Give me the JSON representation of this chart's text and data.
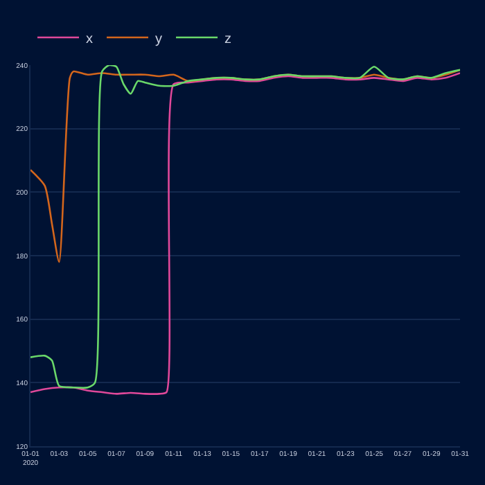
{
  "chart_data": {
    "type": "line",
    "series": [
      {
        "name": "x",
        "color": "#e0489a",
        "x": [
          "2020-01-01",
          "2020-01-02",
          "2020-01-03",
          "2020-01-04",
          "2020-01-05",
          "2020-01-06",
          "2020-01-07",
          "2020-01-08",
          "2020-01-09",
          "2020-01-10",
          "2020-01-10T12:00",
          "2020-01-11",
          "2020-01-12",
          "2020-01-13",
          "2020-01-14",
          "2020-01-15",
          "2020-01-16",
          "2020-01-17",
          "2020-01-18",
          "2020-01-19",
          "2020-01-20",
          "2020-01-21",
          "2020-01-22",
          "2020-01-23",
          "2020-01-24",
          "2020-01-25",
          "2020-01-26",
          "2020-01-27",
          "2020-01-28",
          "2020-01-29",
          "2020-01-30",
          "2020-01-31"
        ],
        "values": [
          137,
          138,
          138.5,
          138.5,
          137.5,
          137,
          136.5,
          136.8,
          136.5,
          136.5,
          137,
          234,
          234.5,
          235,
          235.5,
          235.5,
          235,
          235,
          236,
          236.5,
          236,
          236,
          236,
          235.5,
          235.5,
          236,
          235.5,
          235,
          236,
          235.5,
          236,
          237.5
        ]
      },
      {
        "name": "y",
        "color": "#d4661c",
        "x": [
          "2020-01-01",
          "2020-01-02",
          "2020-01-02T12:00",
          "2020-01-03",
          "2020-01-03T18:00",
          "2020-01-04",
          "2020-01-05",
          "2020-01-06",
          "2020-01-07",
          "2020-01-08",
          "2020-01-09",
          "2020-01-10",
          "2020-01-11",
          "2020-01-12",
          "2020-01-13",
          "2020-01-14",
          "2020-01-15",
          "2020-01-16",
          "2020-01-17",
          "2020-01-18",
          "2020-01-19",
          "2020-01-20",
          "2020-01-21",
          "2020-01-22",
          "2020-01-23",
          "2020-01-24",
          "2020-01-25",
          "2020-01-26",
          "2020-01-27",
          "2020-01-28",
          "2020-01-29",
          "2020-01-30",
          "2020-01-31"
        ],
        "values": [
          207,
          202,
          190,
          178,
          236,
          238,
          237,
          237.5,
          237,
          237,
          237,
          236.5,
          237,
          235,
          235.5,
          236,
          236,
          235.5,
          235.5,
          236.5,
          237,
          236.5,
          236.5,
          236.5,
          236,
          236,
          237,
          236,
          235.5,
          236.5,
          236,
          237,
          238.5
        ]
      },
      {
        "name": "z",
        "color": "#6ad86a",
        "x": [
          "2020-01-01",
          "2020-01-02",
          "2020-01-02T12:00",
          "2020-01-03",
          "2020-01-04",
          "2020-01-05",
          "2020-01-05T12:00",
          "2020-01-06",
          "2020-01-06T12:00",
          "2020-01-07",
          "2020-01-07T12:00",
          "2020-01-08",
          "2020-01-08T12:00",
          "2020-01-09",
          "2020-01-10",
          "2020-01-11",
          "2020-01-12",
          "2020-01-13",
          "2020-01-14",
          "2020-01-15",
          "2020-01-16",
          "2020-01-17",
          "2020-01-18",
          "2020-01-19",
          "2020-01-20",
          "2020-01-21",
          "2020-01-22",
          "2020-01-23",
          "2020-01-24",
          "2020-01-25",
          "2020-01-26",
          "2020-01-27",
          "2020-01-28",
          "2020-01-29",
          "2020-01-30",
          "2020-01-31"
        ],
        "values": [
          148,
          148.5,
          147,
          139,
          138.5,
          138.5,
          140,
          238,
          240,
          239.5,
          234,
          231,
          235,
          234.5,
          233.5,
          233.5,
          235,
          235.5,
          236,
          236,
          235.5,
          235.5,
          236.5,
          237,
          236.5,
          236.5,
          236.5,
          236,
          236,
          239.5,
          236,
          235.5,
          236.5,
          236,
          237.5,
          238.5
        ]
      }
    ],
    "xlim": [
      "2020-01-01",
      "2020-01-31"
    ],
    "xticks": [
      {
        "value": "2020-01-01",
        "label": "01-01\n2020"
      },
      {
        "value": "2020-01-03",
        "label": "01-03"
      },
      {
        "value": "2020-01-05",
        "label": "01-05"
      },
      {
        "value": "2020-01-07",
        "label": "01-07"
      },
      {
        "value": "2020-01-09",
        "label": "01-09"
      },
      {
        "value": "2020-01-11",
        "label": "01-11"
      },
      {
        "value": "2020-01-13",
        "label": "01-13"
      },
      {
        "value": "2020-01-15",
        "label": "01-15"
      },
      {
        "value": "2020-01-17",
        "label": "01-17"
      },
      {
        "value": "2020-01-19",
        "label": "01-19"
      },
      {
        "value": "2020-01-21",
        "label": "01-21"
      },
      {
        "value": "2020-01-23",
        "label": "01-23"
      },
      {
        "value": "2020-01-25",
        "label": "01-25"
      },
      {
        "value": "2020-01-27",
        "label": "01-27"
      },
      {
        "value": "2020-01-29",
        "label": "01-29"
      },
      {
        "value": "2020-01-31",
        "label": "01-31"
      }
    ],
    "ylim": [
      120,
      240
    ],
    "yticks": [
      120,
      140,
      160,
      180,
      200,
      220,
      240
    ],
    "grid": "y",
    "legend": "top left",
    "marker": "none",
    "line_style": "solid"
  }
}
